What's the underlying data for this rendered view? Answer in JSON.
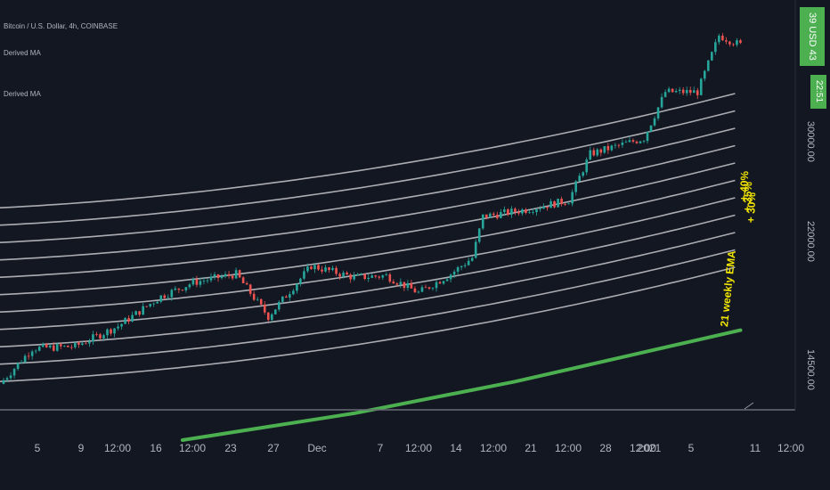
{
  "legend": {
    "symbol": "Bitcoin / U.S. Dollar, 4h, COINBASE",
    "ma1": "Derived MA",
    "ma2": "Derived MA"
  },
  "price_axis": {
    "ticks": [
      "30000.00",
      "22000.00",
      "14500.00"
    ],
    "current_price": "39 USD 43",
    "countdown": "22:51"
  },
  "time_axis": {
    "labels": [
      "5",
      "9",
      "12:00",
      "16",
      "12:00",
      "23",
      "27",
      "Dec",
      "7",
      "12:00",
      "14",
      "12:00",
      "21",
      "12:00",
      "28",
      "12:00",
      "2021",
      "5",
      "11",
      "12:00"
    ]
  },
  "annotations": {
    "band_label_1": "+ 40%",
    "band_label_2": "+ 35%",
    "band_label_3": "+ 30%",
    "ema_label": "21 weekly EMA"
  },
  "colors": {
    "background": "#131722",
    "band_line": "#c8c8cc",
    "ema_line": "#4caf50",
    "candle_up": "#26a69a",
    "candle_down": "#ef5350",
    "annotation": "#f2e600",
    "price_box": "#4caf50"
  },
  "chart_data": {
    "type": "candlestick",
    "title": "Bitcoin / U.S. Dollar, 4h, COINBASE",
    "x_range": [
      "2020-11-02",
      "2021-01-12"
    ],
    "y_axis_scale": "log",
    "price_path": [
      {
        "date": "2020-11-02",
        "close": 13600
      },
      {
        "date": "2020-11-05",
        "close": 15200
      },
      {
        "date": "2020-11-09",
        "close": 15300
      },
      {
        "date": "2020-11-13",
        "close": 16300
      },
      {
        "date": "2020-11-17",
        "close": 17900
      },
      {
        "date": "2020-11-20",
        "close": 18700
      },
      {
        "date": "2020-11-24",
        "close": 19200
      },
      {
        "date": "2020-11-27",
        "close": 16800
      },
      {
        "date": "2020-12-01",
        "close": 19700
      },
      {
        "date": "2020-12-05",
        "close": 19000
      },
      {
        "date": "2020-12-08",
        "close": 19100
      },
      {
        "date": "2020-12-11",
        "close": 18100
      },
      {
        "date": "2020-12-14",
        "close": 19200
      },
      {
        "date": "2020-12-16",
        "close": 20200
      },
      {
        "date": "2020-12-17",
        "close": 23000
      },
      {
        "date": "2020-12-21",
        "close": 23500
      },
      {
        "date": "2020-12-25",
        "close": 24200
      },
      {
        "date": "2020-12-27",
        "close": 28000
      },
      {
        "date": "2021-01-01",
        "close": 29400
      },
      {
        "date": "2021-01-03",
        "close": 34000
      },
      {
        "date": "2021-01-06",
        "close": 34000
      },
      {
        "date": "2021-01-08",
        "close": 40600
      },
      {
        "date": "2021-01-10",
        "close": 39400
      }
    ],
    "bands": {
      "description": "Series of percentage bands above the 21 weekly EMA",
      "count": 11,
      "labeled": [
        "+ 40%",
        "+ 35%",
        "+ 30%"
      ]
    },
    "ema": {
      "name": "21 weekly EMA",
      "values": [
        {
          "date": "2020-11-19",
          "value": 11400
        },
        {
          "date": "2020-12-05",
          "value": 12400
        },
        {
          "date": "2020-12-20",
          "value": 13700
        },
        {
          "date": "2021-01-10",
          "value": 16100
        }
      ]
    },
    "y_ticks": [
      30000,
      22000,
      14500
    ]
  }
}
